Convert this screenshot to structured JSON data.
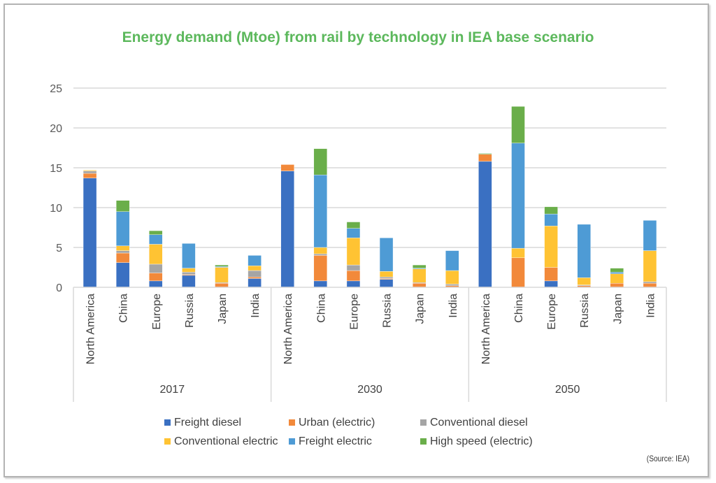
{
  "chart_data": {
    "type": "bar",
    "stacked": true,
    "title": "Energy demand (Mtoe) from rail by technology in IEA base scenario",
    "xlabel": "",
    "ylabel": "",
    "ylim": [
      0,
      25
    ],
    "yticks": [
      "0",
      "5",
      "10",
      "15",
      "20",
      "25"
    ],
    "ytick_values": [
      0,
      5,
      10,
      15,
      20,
      25
    ],
    "grid": true,
    "legend_position": "bottom",
    "groups": [
      "2017",
      "2030",
      "2050"
    ],
    "categories": [
      "North America",
      "China",
      "Europe",
      "Russia",
      "Japan",
      "India"
    ],
    "series": [
      {
        "name": "Freight diesel",
        "color": "#3a70c2",
        "values": [
          [
            13.7,
            3.1,
            0.8,
            1.5,
            0,
            1.1
          ],
          [
            14.6,
            0.8,
            0.8,
            1.0,
            0,
            0
          ],
          [
            15.8,
            0,
            0.8,
            0,
            0,
            0
          ]
        ]
      },
      {
        "name": "Urban (electric)",
        "color": "#f2893a",
        "values": [
          [
            0.6,
            1.2,
            1.0,
            0.1,
            0.5,
            0.2
          ],
          [
            0.8,
            3.2,
            1.3,
            0.1,
            0.5,
            0.2
          ],
          [
            0.9,
            3.7,
            1.7,
            0.2,
            0.5,
            0.5
          ]
        ]
      },
      {
        "name": "Conventional diesel",
        "color": "#a5a5a5",
        "values": [
          [
            0.3,
            0.3,
            1.1,
            0.3,
            0.1,
            0.8
          ],
          [
            0,
            0.2,
            0.7,
            0.2,
            0.1,
            0.2
          ],
          [
            0,
            0,
            0,
            0.1,
            0,
            0.2
          ]
        ]
      },
      {
        "name": "Conventional electric",
        "color": "#ffc333",
        "values": [
          [
            0.1,
            0.6,
            2.5,
            0.5,
            1.9,
            0.6
          ],
          [
            0,
            0.8,
            3.4,
            0.7,
            1.7,
            1.7
          ],
          [
            0,
            1.2,
            5.2,
            0.9,
            1.2,
            3.9
          ]
        ]
      },
      {
        "name": "Freight electric",
        "color": "#4e9bd5",
        "values": [
          [
            0,
            4.3,
            1.2,
            3.1,
            0.1,
            1.3
          ],
          [
            0,
            9.1,
            1.2,
            4.2,
            0.1,
            2.5
          ],
          [
            0,
            13.2,
            1.5,
            6.7,
            0.2,
            3.8
          ]
        ]
      },
      {
        "name": "High speed (electric)",
        "color": "#6aae4a",
        "values": [
          [
            0,
            1.4,
            0.5,
            0,
            0.2,
            0
          ],
          [
            0,
            3.3,
            0.8,
            0,
            0.4,
            0
          ],
          [
            0.1,
            4.6,
            0.9,
            0,
            0.5,
            0
          ]
        ]
      }
    ],
    "legend_rows": [
      [
        0,
        1,
        2
      ],
      [
        3,
        4,
        5
      ]
    ],
    "source": "(Source: IEA)"
  }
}
